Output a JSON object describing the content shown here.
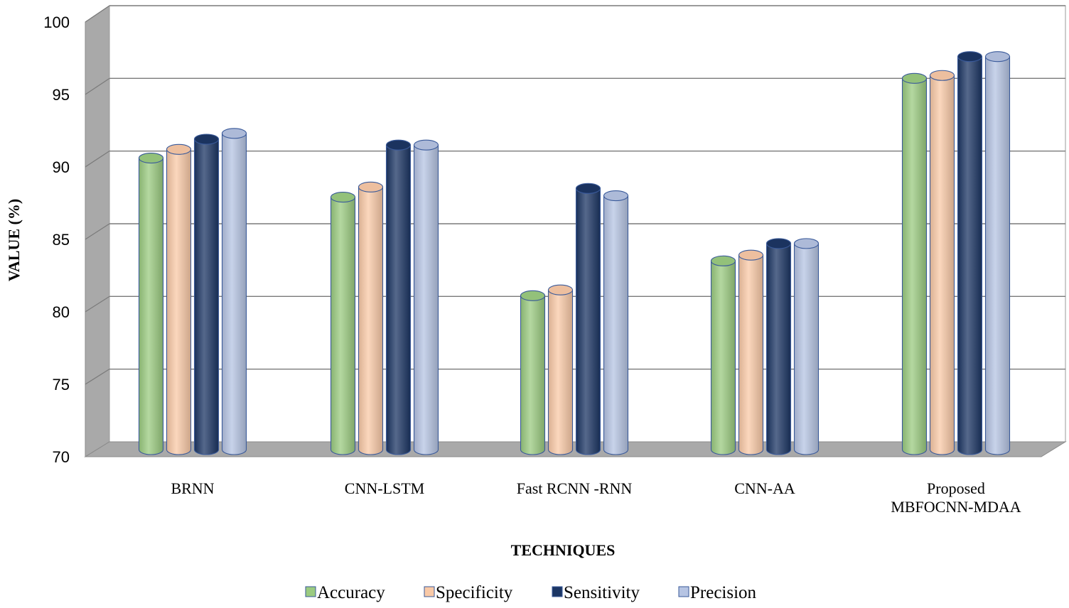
{
  "chart_data": {
    "type": "bar",
    "style": "3d-cylinder",
    "title": "",
    "xlabel": "TECHNIQUES",
    "ylabel": "VALUE (%)",
    "ylim": [
      70,
      100
    ],
    "yticks": [
      70,
      75,
      80,
      85,
      90,
      95,
      100
    ],
    "categories": [
      "BRNN",
      "CNN-LSTM",
      "Fast RCNN -RNN",
      "CNN-AA",
      "Proposed MBFOCNN-MDAA"
    ],
    "category_lines": [
      [
        "BRNN"
      ],
      [
        "CNN-LSTM"
      ],
      [
        "Fast RCNN -RNN"
      ],
      [
        "CNN-AA"
      ],
      [
        "Proposed",
        "MBFOCNN-MDAA"
      ]
    ],
    "series": [
      {
        "name": "Accuracy",
        "color": "#9BCB80",
        "values": [
          91.2,
          88.5,
          81.7,
          84.1,
          96.7
        ]
      },
      {
        "name": "Specificity",
        "color": "#F9C9A7",
        "values": [
          91.8,
          89.2,
          82.1,
          84.5,
          96.9
        ]
      },
      {
        "name": "Sensitivity",
        "color": "#1C3664",
        "values": [
          92.5,
          92.1,
          89.1,
          85.3,
          98.2
        ]
      },
      {
        "name": "Precision",
        "color": "#B6C4E3",
        "values": [
          92.9,
          92.1,
          88.6,
          85.3,
          98.2
        ]
      }
    ],
    "legend_position": "bottom",
    "grid": true
  }
}
